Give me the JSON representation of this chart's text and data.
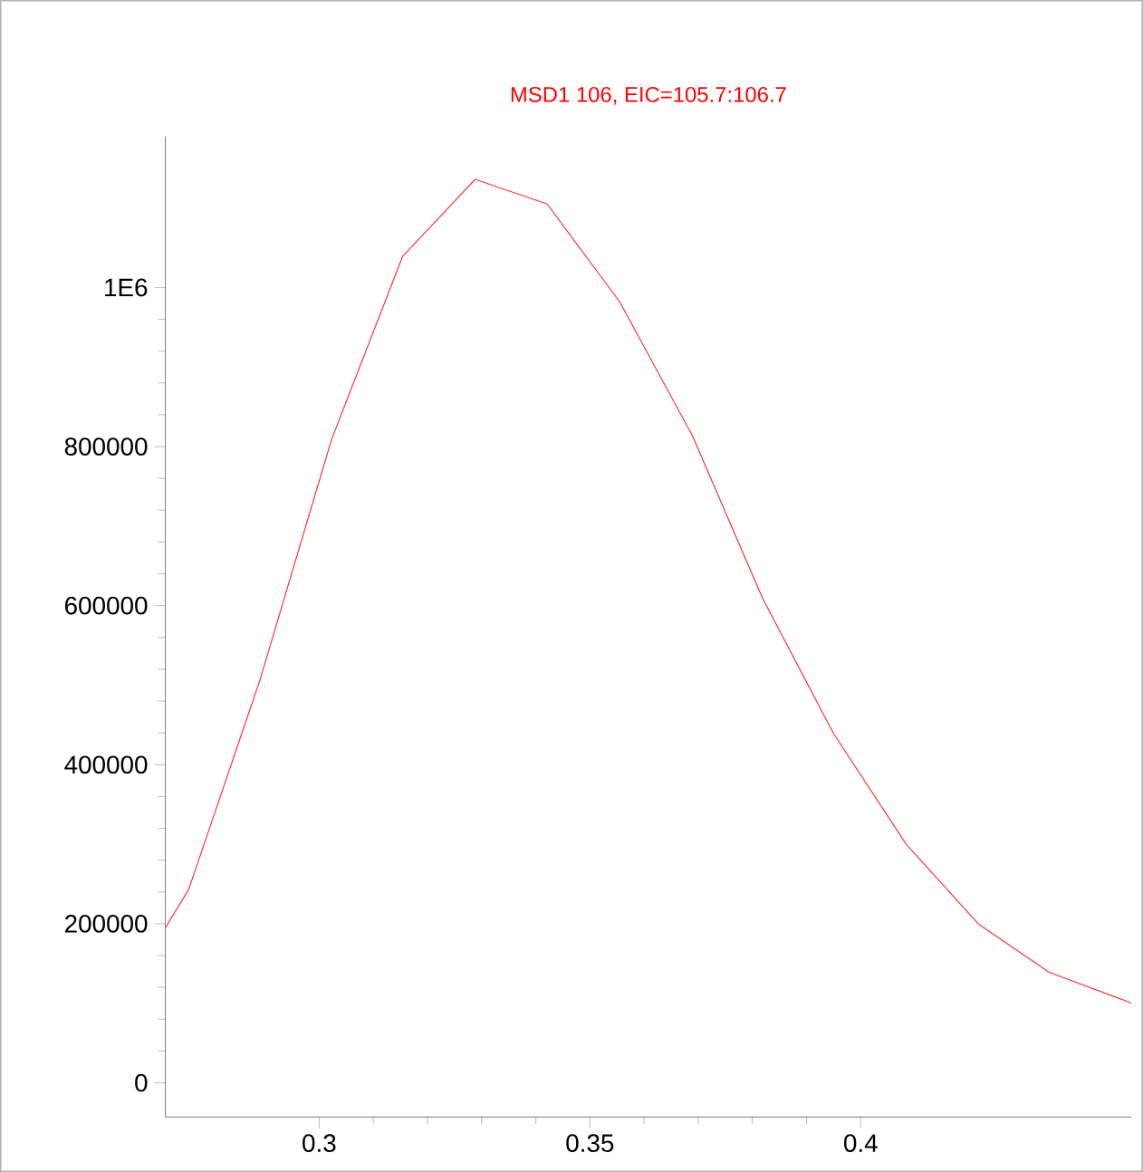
{
  "chart_data": {
    "type": "line",
    "title": "MSD1 106, EIC=105.7:106.7",
    "series": [
      {
        "color": "#ff3333",
        "x": [
          0.2716,
          0.2759,
          0.289,
          0.3023,
          0.3154,
          0.3288,
          0.3421,
          0.3555,
          0.3689,
          0.3819,
          0.395,
          0.4084,
          0.4217,
          0.4348,
          0.4482,
          0.45
        ],
        "values": [
          195000,
          243000,
          505000,
          809000,
          1039000,
          1136000,
          1105000,
          982000,
          814000,
          609000,
          439000,
          300000,
          200000,
          139000,
          105000,
          100000
        ]
      }
    ],
    "xlim": [
      0.2716,
      0.45
    ],
    "ylim": [
      -43000,
      1190000
    ],
    "xticks": [
      0.3,
      0.35,
      0.4
    ],
    "yticks": [
      0,
      200000,
      400000,
      600000,
      800000,
      {
        "value": 1000000,
        "label": "1E6"
      }
    ]
  }
}
